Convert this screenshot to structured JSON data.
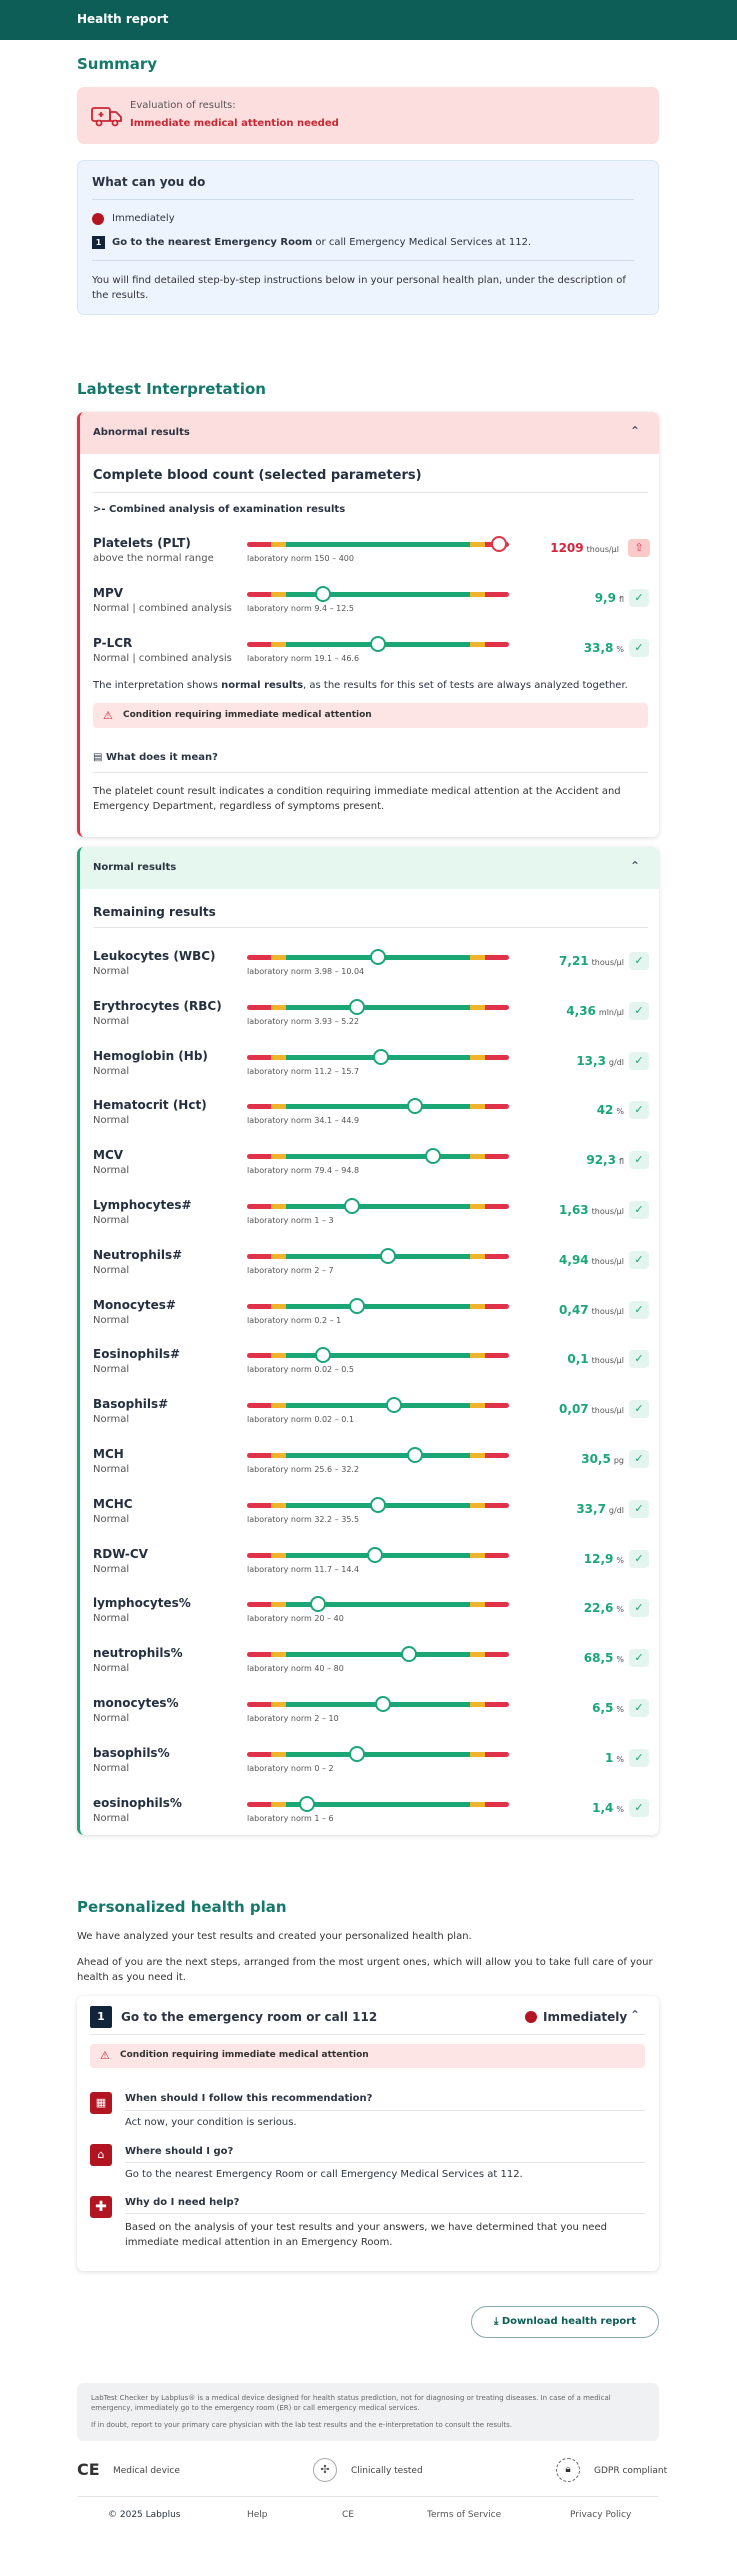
{
  "header": {
    "title": "Health report"
  },
  "summary": {
    "title": "Summary",
    "eval_label": "Evaluation of results:",
    "eval_value": "Immediate medical attention needed",
    "whatcan_title": "What can you do",
    "urgency": "Immediately",
    "step_num": "1",
    "step_bold": "Go to the nearest Emergency Room",
    "step_rest": " or call Emergency Medical Services at 112.",
    "note": "You will find detailed step-by-step instructions below in your personal health plan, under the description of the results."
  },
  "labtest": {
    "title": "Labtest Interpretation",
    "abnormal_title": "Abnormal results",
    "cbc_title": "Complete blood count (selected parameters)",
    "combined": "Combined analysis of examination results",
    "abnormal_params": [
      {
        "name": "Platelets (PLT)",
        "status": "above the normal range",
        "norm": "laboratory norm 150 – 400",
        "value": "1209",
        "unit": "thous/µl",
        "pos": 0.96,
        "flag": "high"
      },
      {
        "name": "MPV",
        "status": "Normal | combined analysis",
        "norm": "laboratory norm 9.4 – 12.5",
        "value": "9,9",
        "unit": "fl",
        "pos": 0.29,
        "flag": "normal"
      },
      {
        "name": "P-LCR",
        "status": "Normal | combined analysis",
        "norm": "laboratory norm 19.1 – 46.6",
        "value": "33,8",
        "unit": "%",
        "pos": 0.5,
        "flag": "normal"
      }
    ],
    "interp_pre": "The interpretation shows ",
    "interp_bold": "normal results",
    "interp_post": ", as the results for this set of tests are always analyzed together.",
    "condition": "Condition requiring immediate medical attention",
    "what_mean": "What does it mean?",
    "explanation": "The platelet count result indicates a condition requiring immediate medical attention at the Accident and Emergency Department, regardless of symptoms present.",
    "normal_title": "Normal results",
    "remaining_title": "Remaining results",
    "normal_params": [
      {
        "name": "Leukocytes (WBC)",
        "status": "Normal",
        "norm": "laboratory norm 3.98 – 10.04",
        "value": "7,21",
        "unit": "thous/µl",
        "pos": 0.5
      },
      {
        "name": "Erythrocytes (RBC)",
        "status": "Normal",
        "norm": "laboratory norm 3.93 – 5.22",
        "value": "4,36",
        "unit": "mln/µl",
        "pos": 0.42
      },
      {
        "name": "Hemoglobin (Hb)",
        "status": "Normal",
        "norm": "laboratory norm 11.2 – 15.7",
        "value": "13,3",
        "unit": "g/dl",
        "pos": 0.51
      },
      {
        "name": "Hematocrit (Hct)",
        "status": "Normal",
        "norm": "laboratory norm 34.1 – 44.9",
        "value": "42",
        "unit": "%",
        "pos": 0.64
      },
      {
        "name": "MCV",
        "status": "Normal",
        "norm": "laboratory norm 79.4 – 94.8",
        "value": "92,3",
        "unit": "fl",
        "pos": 0.71
      },
      {
        "name": "Lymphocytes#",
        "status": "Normal",
        "norm": "laboratory norm 1 – 3",
        "value": "1,63",
        "unit": "thous/µl",
        "pos": 0.4
      },
      {
        "name": "Neutrophils#",
        "status": "Normal",
        "norm": "laboratory norm 2 – 7",
        "value": "4,94",
        "unit": "thous/µl",
        "pos": 0.54
      },
      {
        "name": "Monocytes#",
        "status": "Normal",
        "norm": "laboratory norm 0.2 – 1",
        "value": "0,47",
        "unit": "thous/µl",
        "pos": 0.42
      },
      {
        "name": "Eosinophils#",
        "status": "Normal",
        "norm": "laboratory norm 0.02 – 0.5",
        "value": "0,1",
        "unit": "thous/µl",
        "pos": 0.29
      },
      {
        "name": "Basophils#",
        "status": "Normal",
        "norm": "laboratory norm 0.02 – 0.1",
        "value": "0,07",
        "unit": "thous/µl",
        "pos": 0.56
      },
      {
        "name": "MCH",
        "status": "Normal",
        "norm": "laboratory norm 25.6 – 32.2",
        "value": "30,5",
        "unit": "pg",
        "pos": 0.64
      },
      {
        "name": "MCHC",
        "status": "Normal",
        "norm": "laboratory norm 32.2 – 35.5",
        "value": "33,7",
        "unit": "g/dl",
        "pos": 0.5
      },
      {
        "name": "RDW-CV",
        "status": "Normal",
        "norm": "laboratory norm 11.7 – 14.4",
        "value": "12,9",
        "unit": "%",
        "pos": 0.49
      },
      {
        "name": "lymphocytes%",
        "status": "Normal",
        "norm": "laboratory norm 20 – 40",
        "value": "22,6",
        "unit": "%",
        "pos": 0.27
      },
      {
        "name": "neutrophils%",
        "status": "Normal",
        "norm": "laboratory norm 40 – 80",
        "value": "68,5",
        "unit": "%",
        "pos": 0.62
      },
      {
        "name": "monocytes%",
        "status": "Normal",
        "norm": "laboratory norm 2 – 10",
        "value": "6,5",
        "unit": "%",
        "pos": 0.52
      },
      {
        "name": "basophils%",
        "status": "Normal",
        "norm": "laboratory norm 0 – 2",
        "value": "1",
        "unit": "%",
        "pos": 0.42
      },
      {
        "name": "eosinophils%",
        "status": "Normal",
        "norm": "laboratory norm 1 – 6",
        "value": "1,4",
        "unit": "%",
        "pos": 0.23
      }
    ]
  },
  "plan": {
    "title": "Personalized health plan",
    "intro1": "We have analyzed your test results and created your personalized health plan.",
    "intro2": "Ahead of you are the next steps, arranged from the most urgent ones, which will allow you to take full care of your health as you need it.",
    "step_num": "1",
    "step_title": "Go to the emergency room or call 112",
    "urgency": "Immediately",
    "condition": "Condition requiring immediate medical attention",
    "q1": "When should I follow this recommendation?",
    "a1": "Act now, your condition is serious.",
    "q2": "Where should I go?",
    "a2": "Go to the nearest Emergency Room or call Emergency Medical Services at 112.",
    "q3": "Why do I need help?",
    "a3": "Based on the analysis of your test results and your answers, we have determined that you need immediate medical attention in an Emergency Room.",
    "download": "Download health report"
  },
  "footer": {
    "disclaimer1": "LabTest Checker by Labplus® is a medical device designed for health status prediction, not for diagnosing or treating diseases. In case of a medical emergency, immediately go to the emergency room (ER) or call emergency medical services.",
    "disclaimer2": "If in doubt, report to your primary care physician with the lab test results and the e-interpretation to consult the results.",
    "badge1_mark": "CE",
    "badge1": "Medical device",
    "badge2": "Clinically tested",
    "badge3": "GDPR compliant",
    "links": [
      "© 2025 Labplus",
      "Help",
      "CE",
      "Terms of Service",
      "Privacy Policy"
    ]
  }
}
